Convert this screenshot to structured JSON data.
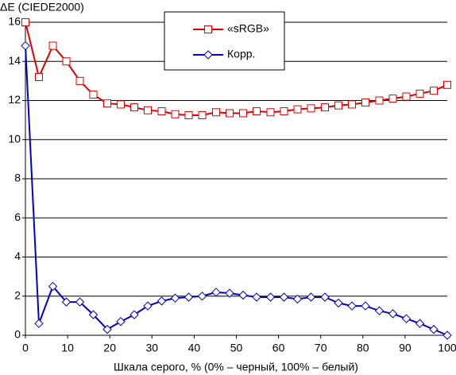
{
  "chart_data": {
    "type": "line",
    "y_label": "ΔE (CIEDE2000)",
    "x_label": "Шкала серого, % (0% – черный, 100% – белый)",
    "x": [
      0,
      3.2,
      6.5,
      9.7,
      12.9,
      16.1,
      19.4,
      22.6,
      25.8,
      29.0,
      32.3,
      35.5,
      38.7,
      41.9,
      45.2,
      48.4,
      51.6,
      54.8,
      58.1,
      61.3,
      64.5,
      67.7,
      71.0,
      74.2,
      77.4,
      80.6,
      83.9,
      87.1,
      90.3,
      93.5,
      96.8,
      100
    ],
    "series": [
      {
        "name": "«sRGB»",
        "color": "#e00000",
        "marker": "square",
        "values": [
          16,
          13.2,
          14.8,
          14,
          13,
          12.3,
          11.85,
          11.8,
          11.65,
          11.5,
          11.45,
          11.3,
          11.25,
          11.25,
          11.4,
          11.35,
          11.35,
          11.45,
          11.4,
          11.45,
          11.55,
          11.6,
          11.65,
          11.75,
          11.8,
          11.9,
          12.0,
          12.1,
          12.2,
          12.35,
          12.5,
          12.8
        ]
      },
      {
        "name": "Корр.",
        "color": "#0000c8",
        "marker": "diamond",
        "values": [
          14.8,
          0.6,
          2.5,
          1.7,
          1.7,
          1.05,
          0.3,
          0.7,
          1.05,
          1.5,
          1.75,
          1.9,
          1.95,
          2.0,
          2.2,
          2.15,
          2.05,
          1.95,
          1.95,
          1.95,
          1.85,
          1.95,
          1.95,
          1.65,
          1.5,
          1.5,
          1.25,
          1.1,
          0.85,
          0.6,
          0.3,
          0.0
        ]
      }
    ],
    "xlim": [
      0,
      100
    ],
    "xticks": [
      0,
      10,
      20,
      30,
      40,
      50,
      60,
      70,
      80,
      90,
      100
    ],
    "ylim": [
      0,
      16
    ],
    "yticks": [
      0,
      2,
      4,
      6,
      8,
      10,
      12,
      14,
      16
    ],
    "grid": true
  }
}
